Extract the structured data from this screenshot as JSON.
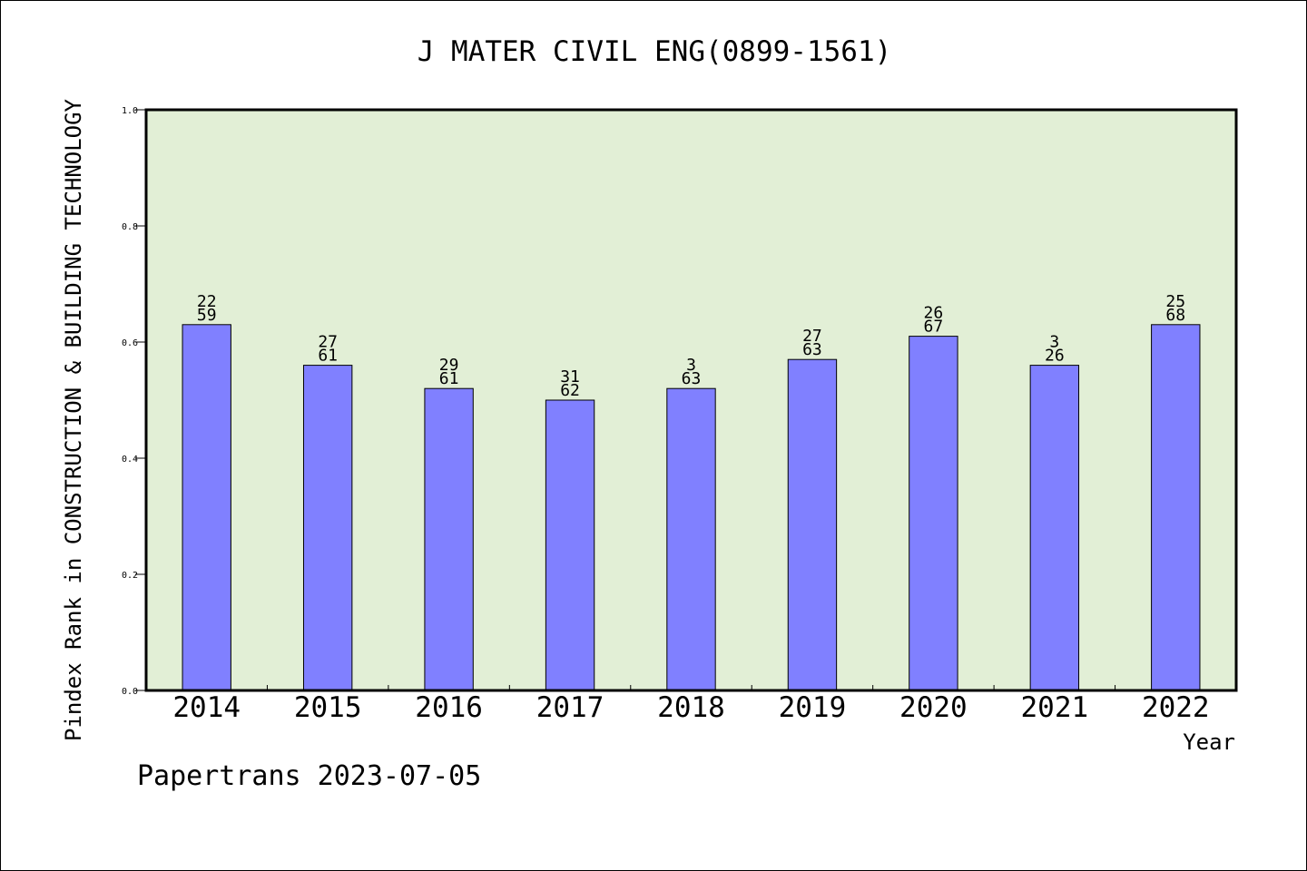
{
  "chart_data": {
    "type": "bar",
    "title": "J MATER CIVIL ENG(0899-1561)",
    "xlabel": "Year",
    "ylabel": "Pindex Rank in CONSTRUCTION & BUILDING TECHNOLOGY",
    "categories": [
      "2014",
      "2015",
      "2016",
      "2017",
      "2018",
      "2019",
      "2020",
      "2021",
      "2022"
    ],
    "values": [
      0.63,
      0.56,
      0.52,
      0.5,
      0.52,
      0.57,
      0.61,
      0.56,
      0.63
    ],
    "bar_labels_top": [
      "22",
      "27",
      "29",
      "31",
      "3",
      "27",
      "26",
      "3",
      "25"
    ],
    "bar_labels_bottom": [
      "59",
      "61",
      "61",
      "62",
      "63",
      "63",
      "67",
      "26",
      "68"
    ],
    "ylim": [
      0,
      1.0
    ],
    "yticks": [
      "0.0",
      "0.2",
      "0.4",
      "0.6",
      "0.8",
      "1.0"
    ],
    "grid": false,
    "colors": {
      "plot_bg": "#e2efd6",
      "bar": "#8080ff",
      "bar_edge": "#000000",
      "frame": "#000000"
    }
  },
  "footer": {
    "watermark": "Papertrans 2023-07-05"
  }
}
